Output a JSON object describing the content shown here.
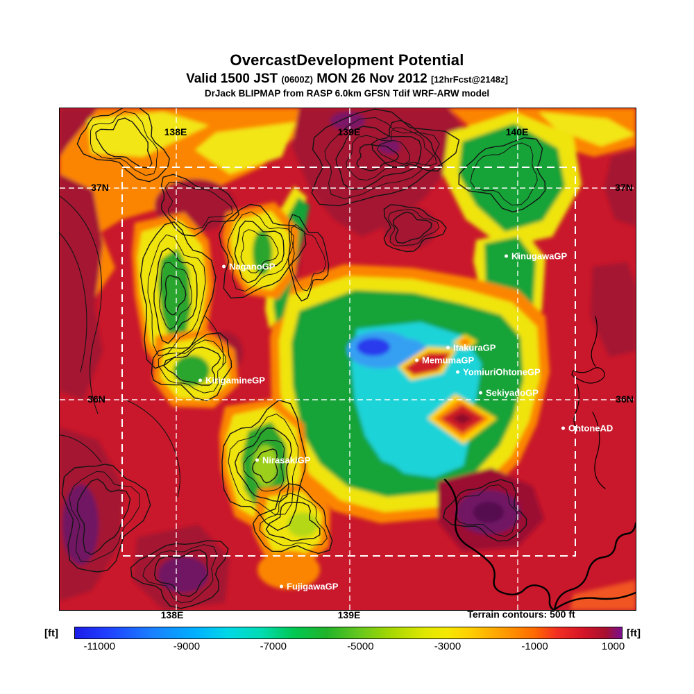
{
  "header": {
    "title": "OvercastDevelopment Potential",
    "valid_main": "Valid 1500 JST",
    "valid_zulu": "(0600Z)",
    "valid_date": "MON 26 Nov 2012",
    "valid_fcst": "[12hrFcst@2148z]",
    "model_line": "DrJack BLIPMAP from RASP 6.0km GFSN Tdif WRF-ARW model"
  },
  "map": {
    "grid_labels": {
      "top": [
        "138E",
        "139E",
        "140E"
      ],
      "bottom": [
        "138E",
        "139E"
      ],
      "left": [
        "37N",
        "36N"
      ],
      "right": [
        "37N",
        "36N"
      ]
    },
    "sites": [
      {
        "name": "NaganoGP"
      },
      {
        "name": "KinugawaGP"
      },
      {
        "name": "ItakuraGP"
      },
      {
        "name": "MemumaGP"
      },
      {
        "name": "YomiuriOhtoneGP"
      },
      {
        "name": "KirigamineGP"
      },
      {
        "name": "SekiyadoGP"
      },
      {
        "name": "OhtoneAD"
      },
      {
        "name": "NirasakiGP"
      },
      {
        "name": "FujigawaGP"
      }
    ],
    "terrain_note": "Terrain contours: 500 ft"
  },
  "colorbar": {
    "unit_left": "[ft]",
    "unit_right": "[ft]",
    "ticks": [
      "-11000",
      "-9000",
      "-7000",
      "-5000",
      "-3000",
      "-1000",
      "1000"
    ],
    "scale_colors": [
      "#1c1ce8",
      "#1a7fff",
      "#00d8e6",
      "#00c853",
      "#a8d800",
      "#f5e800",
      "#ffa000",
      "#f43022",
      "#a8102e",
      "#7a0f8e"
    ]
  }
}
